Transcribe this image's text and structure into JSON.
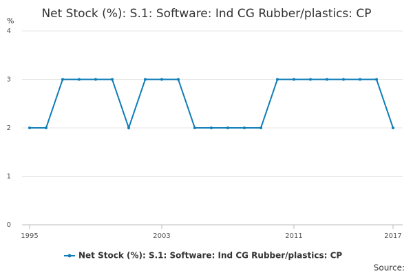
{
  "chart_data": {
    "type": "line",
    "title": "Net Stock (%): S.1: Software: Ind CG Rubber/plastics: CP",
    "y_label": "%",
    "x": [
      1995,
      1996,
      1997,
      1998,
      1999,
      2000,
      2001,
      2002,
      2003,
      2004,
      2005,
      2006,
      2007,
      2008,
      2009,
      2010,
      2011,
      2012,
      2013,
      2014,
      2015,
      2016,
      2017
    ],
    "series": [
      {
        "name": "Net Stock (%): S.1: Software: Ind CG Rubber/plastics: CP",
        "color": "#0e7db6",
        "values": [
          2,
          2,
          3,
          3,
          3,
          3,
          2,
          3,
          3,
          3,
          2,
          2,
          2,
          2,
          2,
          3,
          3,
          3,
          3,
          3,
          3,
          3,
          2
        ]
      }
    ],
    "xlim": [
      1995,
      2017
    ],
    "xticks": [
      1995,
      2003,
      2011,
      2017
    ],
    "ylim": [
      0,
      4
    ],
    "yticks": [
      0,
      1,
      2,
      3,
      4
    ],
    "grid": true,
    "source": "Source:"
  }
}
